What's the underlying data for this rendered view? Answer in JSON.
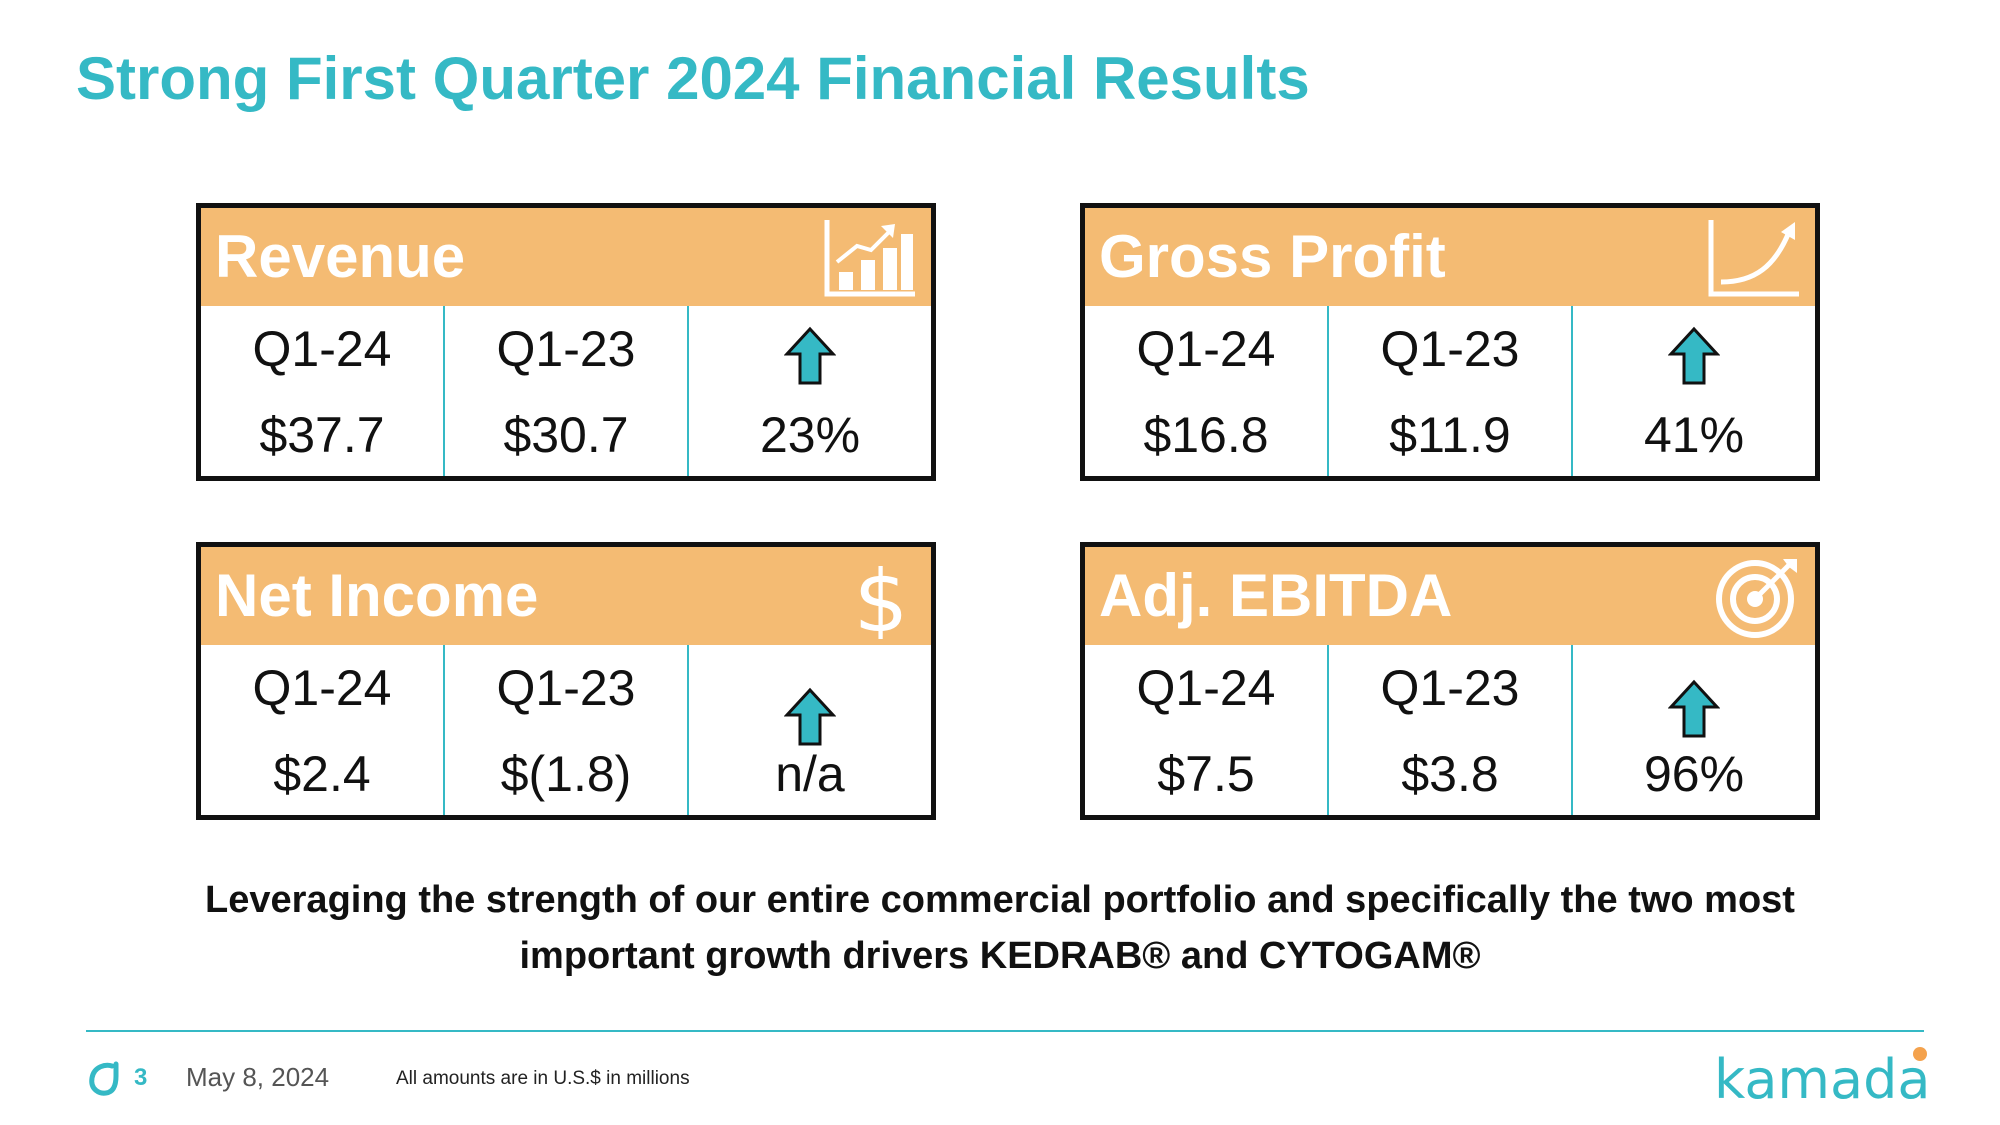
{
  "title": "Strong First Quarter 2024 Financial Results",
  "cards": [
    {
      "title": "Revenue",
      "icon": "bar-chart-growth-icon",
      "labels": [
        "Q1-24",
        "Q1-23"
      ],
      "values": [
        "$37.7",
        "$30.7"
      ],
      "change": "23%"
    },
    {
      "title": "Gross Profit",
      "icon": "growth-curve-icon",
      "labels": [
        "Q1-24",
        "Q1-23"
      ],
      "values": [
        "$16.8",
        "$11.9"
      ],
      "change": "41%"
    },
    {
      "title": "Net Income",
      "icon": "dollar-sign-icon",
      "labels": [
        "Q1-24",
        "Q1-23"
      ],
      "values": [
        "$2.4",
        "$(1.8)"
      ],
      "change": "n/a"
    },
    {
      "title": "Adj. EBITDA",
      "icon": "target-icon",
      "labels": [
        "Q1-24",
        "Q1-23"
      ],
      "values": [
        "$7.5",
        "$3.8"
      ],
      "change": "96%"
    }
  ],
  "tagline": {
    "line1": "Leveraging the strength of our entire commercial portfolio and specifically the two most",
    "line2": "important growth drivers KEDRAB® and CYTOGAM®"
  },
  "footer": {
    "page_number": "3",
    "date": "May 8, 2024",
    "note": "All amounts are in U.S.$ in millions",
    "brand": "kamada"
  },
  "colors": {
    "accent": "#35b9c5",
    "header": "#f4bb73",
    "brand_dot": "#f4a24d"
  }
}
